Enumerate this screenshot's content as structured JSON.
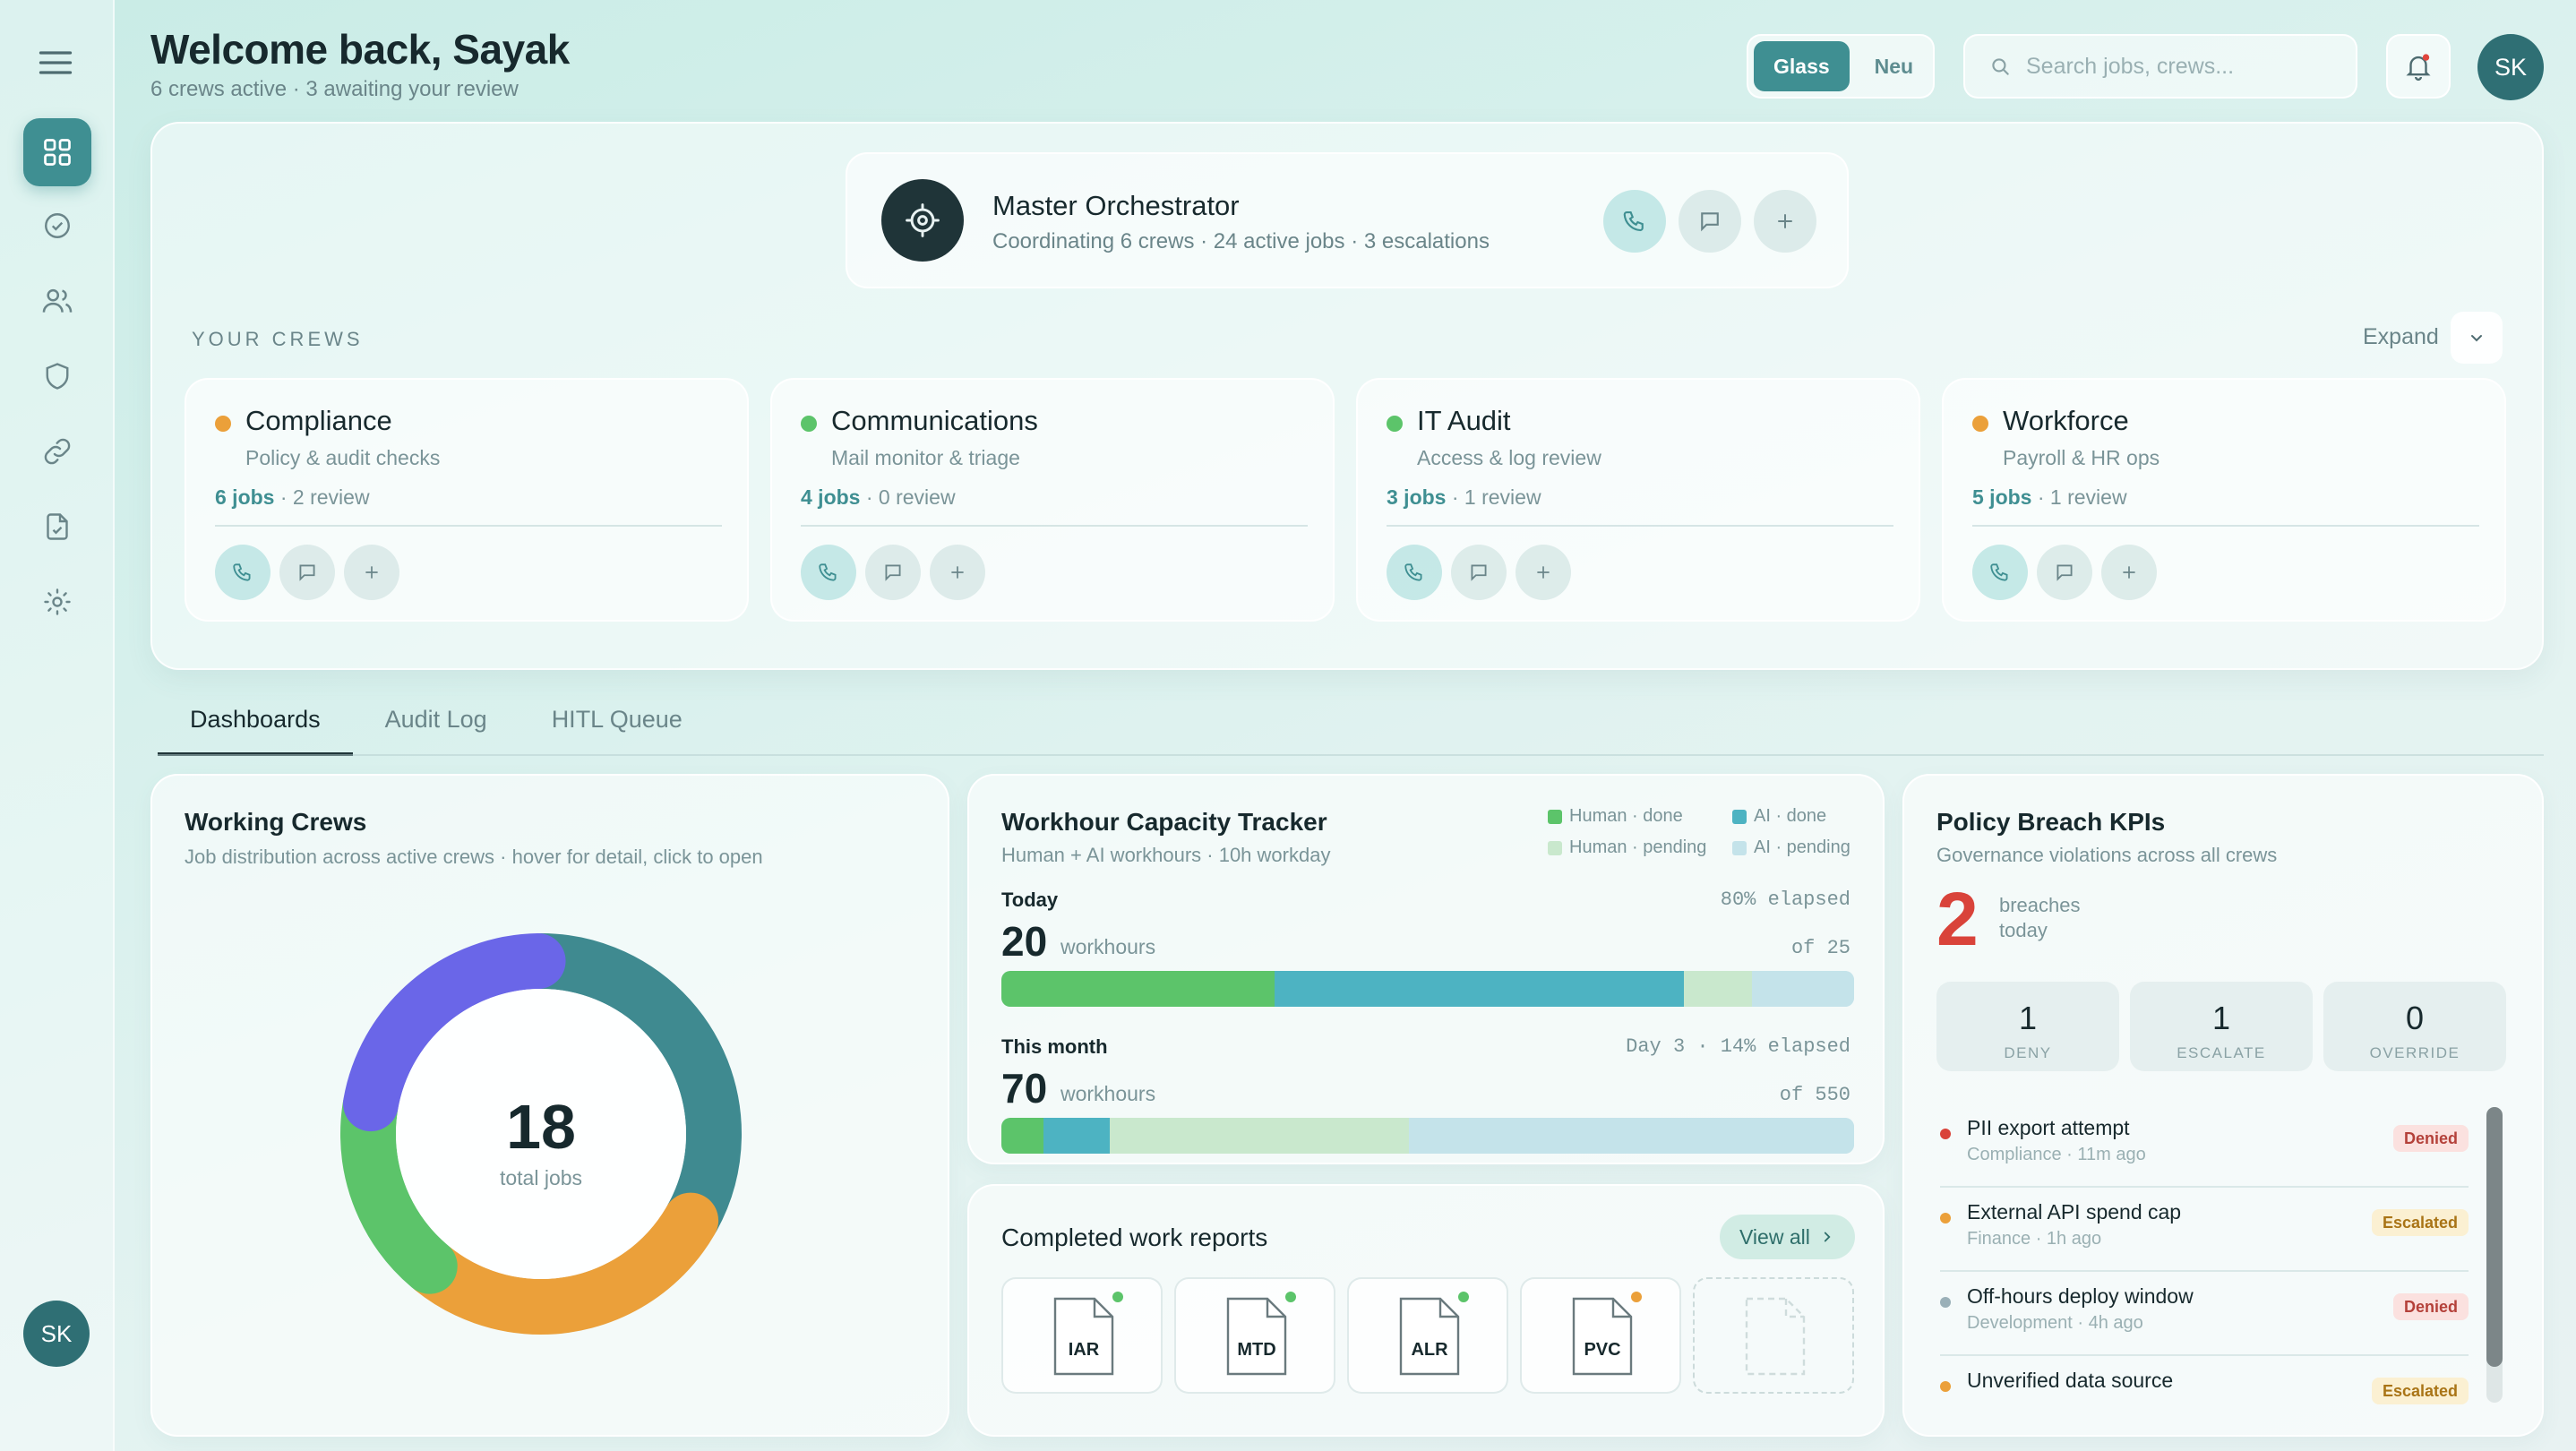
{
  "header": {
    "title": "Welcome back, Sayak",
    "subtitle": "6 crews active · 3 awaiting your review",
    "theme_options": [
      "Glass",
      "Neu"
    ],
    "search_placeholder": "Search jobs, crews...",
    "avatar_initials": "SK"
  },
  "sidebar": {
    "items": [
      "grid-icon",
      "check-circle-icon",
      "users-icon",
      "shield-icon",
      "link-icon",
      "file-check-icon",
      "settings-icon"
    ],
    "avatar_initials": "SK"
  },
  "orchestrator": {
    "title": "Master Orchestrator",
    "subtitle": "Coordinating 6 crews · 24 active jobs · 3 escalations"
  },
  "crews_section": {
    "label": "YOUR CREWS",
    "expand_label": "Expand",
    "crews": [
      {
        "name": "Compliance",
        "desc": "Policy & audit checks",
        "jobs": "6 jobs",
        "review": " · 2 review",
        "status_color": "#eba03a"
      },
      {
        "name": "Communications",
        "desc": "Mail monitor & triage",
        "jobs": "4 jobs",
        "review": " · 0 review",
        "status_color": "#5cc46a"
      },
      {
        "name": "IT Audit",
        "desc": "Access & log review",
        "jobs": "3 jobs",
        "review": " · 1 review",
        "status_color": "#5cc46a"
      },
      {
        "name": "Workforce",
        "desc": "Payroll & HR ops",
        "jobs": "5 jobs",
        "review": " · 1 review",
        "status_color": "#eba03a"
      }
    ]
  },
  "tabs": [
    "Dashboards",
    "Audit Log",
    "HITL Queue"
  ],
  "working_crews": {
    "title": "Working Crews",
    "subtitle": "Job distribution across active crews · hover for detail, click to open",
    "total": "18",
    "total_label": "total jobs"
  },
  "chart_data": {
    "type": "pie",
    "donut": true,
    "total": 18,
    "slices": [
      {
        "value": 6,
        "color": "#3f8a90"
      },
      {
        "value": 5,
        "color": "#eba03a"
      },
      {
        "value": 3,
        "color": "#5cc46a"
      },
      {
        "value": 4,
        "color": "#6a66e8"
      }
    ]
  },
  "workhour": {
    "title": "Workhour Capacity Tracker",
    "subtitle": "Human + AI workhours · 10h workday",
    "legend": [
      {
        "label": "Human · done",
        "color": "#5cc46a"
      },
      {
        "label": "AI · done",
        "color": "#4db3c2"
      },
      {
        "label": "Human · pending",
        "color": "#c9e8cd"
      },
      {
        "label": "AI · pending",
        "color": "#c4e3ea"
      }
    ],
    "today": {
      "label": "Today",
      "elapsed": "80% elapsed",
      "value": "20",
      "unit": "workhours",
      "of": "of 25",
      "segments": [
        {
          "value": 8,
          "color": "#5cc46a"
        },
        {
          "value": 12,
          "color": "#4db3c2"
        },
        {
          "value": 2,
          "color": "#c9e8cd"
        },
        {
          "value": 3,
          "color": "#c4e3ea"
        }
      ],
      "max": 25
    },
    "month": {
      "label": "This month",
      "elapsed": "Day 3 · 14% elapsed",
      "value": "70",
      "unit": "workhours",
      "of": "of 550",
      "segments": [
        {
          "value": 27,
          "color": "#5cc46a"
        },
        {
          "value": 43,
          "color": "#4db3c2"
        },
        {
          "value": 193,
          "color": "#c9e8cd"
        },
        {
          "value": 287,
          "color": "#c4e3ea"
        }
      ],
      "max": 550
    }
  },
  "reports": {
    "title": "Completed work reports",
    "view_all": "View all",
    "docs": [
      {
        "code": "IAR",
        "dot": "#5cc46a"
      },
      {
        "code": "MTD",
        "dot": "#5cc46a"
      },
      {
        "code": "ALR",
        "dot": "#5cc46a"
      },
      {
        "code": "PVC",
        "dot": "#eba03a"
      }
    ]
  },
  "policy": {
    "title": "Policy Breach KPIs",
    "subtitle": "Governance violations across all crews",
    "count": "2",
    "count_label_1": "breaches",
    "count_label_2": "today",
    "kpis": [
      {
        "value": "1",
        "label": "DENY"
      },
      {
        "value": "1",
        "label": "ESCALATE"
      },
      {
        "value": "0",
        "label": "OVERRIDE"
      }
    ],
    "items": [
      {
        "name": "PII export attempt",
        "meta": "Compliance · 11m ago",
        "badge": "Denied",
        "kind": "denied",
        "dot": "#d9433a"
      },
      {
        "name": "External API spend cap",
        "meta": "Finance · 1h ago",
        "badge": "Escalated",
        "kind": "escalated",
        "dot": "#eba03a"
      },
      {
        "name": "Off-hours deploy window",
        "meta": "Development · 4h ago",
        "badge": "Denied",
        "kind": "denied",
        "dot": "#9ab0b8"
      },
      {
        "name": "Unverified data source",
        "meta": "",
        "badge": "Escalated",
        "kind": "escalated",
        "dot": "#eba03a"
      }
    ]
  }
}
